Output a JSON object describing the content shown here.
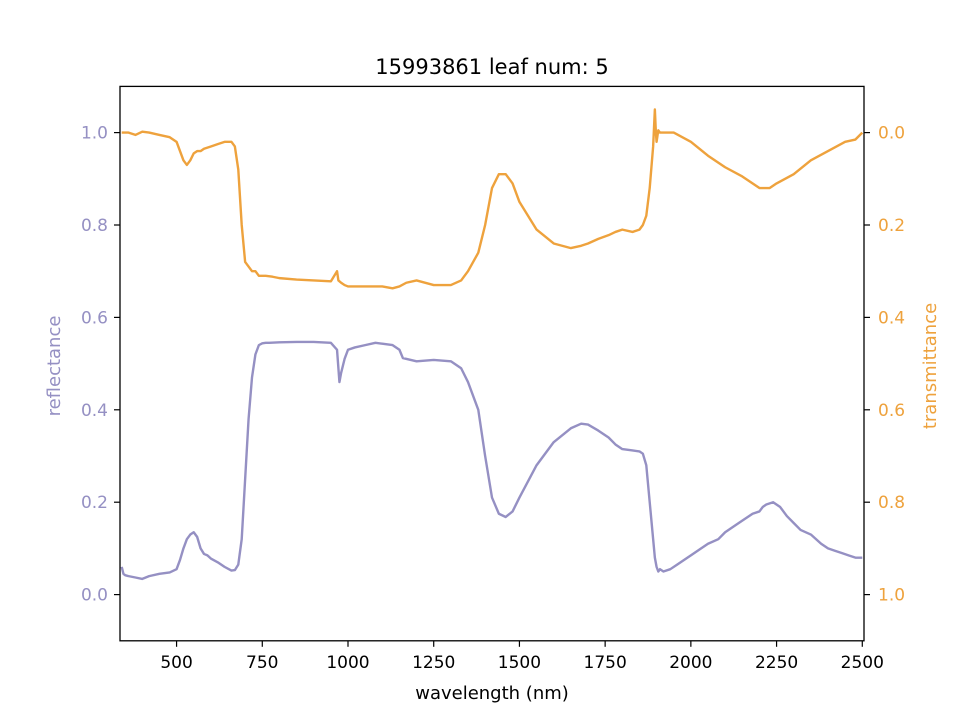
{
  "chart_data": {
    "type": "line",
    "title": "15993861 leaf num: 5",
    "xlabel": "wavelength (nm)",
    "ylabel_left": "reflectance",
    "ylabel_right": "transmittance",
    "xlim": [
      335,
      2505
    ],
    "ylim_left": [
      -0.1,
      1.1
    ],
    "ylim_right": [
      1.1,
      -0.1
    ],
    "right_axis_inverted": true,
    "x_ticks": [
      500,
      750,
      1000,
      1250,
      1500,
      1750,
      2000,
      2250,
      2500
    ],
    "y_ticks_left": [
      0.0,
      0.2,
      0.4,
      0.6,
      0.8,
      1.0
    ],
    "y_ticks_right": [
      0.0,
      0.2,
      0.4,
      0.6,
      0.8,
      1.0
    ],
    "grid": false,
    "colors": {
      "reflectance": "#9590c3",
      "transmittance": "#eea23d",
      "axis": "#000000"
    },
    "series": [
      {
        "name": "reflectance",
        "axis": "left",
        "x": [
          340,
          345,
          350,
          360,
          380,
          400,
          420,
          450,
          480,
          500,
          510,
          520,
          530,
          540,
          550,
          560,
          570,
          580,
          590,
          600,
          620,
          640,
          660,
          670,
          680,
          690,
          700,
          710,
          720,
          730,
          740,
          750,
          760,
          770,
          800,
          850,
          900,
          950,
          968,
          975,
          980,
          990,
          1000,
          1020,
          1050,
          1080,
          1100,
          1130,
          1150,
          1160,
          1200,
          1250,
          1300,
          1330,
          1350,
          1370,
          1380,
          1400,
          1420,
          1440,
          1460,
          1480,
          1500,
          1550,
          1600,
          1650,
          1680,
          1700,
          1730,
          1760,
          1780,
          1800,
          1830,
          1850,
          1860,
          1870,
          1880,
          1890,
          1895,
          1900,
          1905,
          1910,
          1920,
          1940,
          1960,
          1980,
          2000,
          2030,
          2050,
          2080,
          2100,
          2130,
          2150,
          2180,
          2200,
          2210,
          2220,
          2240,
          2260,
          2280,
          2300,
          2320,
          2350,
          2380,
          2400,
          2420,
          2440,
          2460,
          2480,
          2500
        ],
        "y": [
          0.06,
          0.045,
          0.042,
          0.04,
          0.037,
          0.034,
          0.04,
          0.045,
          0.048,
          0.055,
          0.075,
          0.1,
          0.12,
          0.13,
          0.135,
          0.125,
          0.1,
          0.088,
          0.085,
          0.078,
          0.07,
          0.06,
          0.052,
          0.053,
          0.065,
          0.12,
          0.25,
          0.38,
          0.47,
          0.52,
          0.54,
          0.544,
          0.545,
          0.545,
          0.546,
          0.547,
          0.547,
          0.545,
          0.53,
          0.46,
          0.48,
          0.51,
          0.53,
          0.535,
          0.54,
          0.545,
          0.543,
          0.54,
          0.53,
          0.512,
          0.505,
          0.508,
          0.505,
          0.49,
          0.46,
          0.42,
          0.4,
          0.3,
          0.21,
          0.175,
          0.168,
          0.18,
          0.21,
          0.28,
          0.33,
          0.36,
          0.37,
          0.368,
          0.355,
          0.34,
          0.325,
          0.315,
          0.312,
          0.31,
          0.305,
          0.28,
          0.2,
          0.12,
          0.08,
          0.06,
          0.05,
          0.055,
          0.05,
          0.055,
          0.065,
          0.075,
          0.085,
          0.1,
          0.11,
          0.12,
          0.135,
          0.15,
          0.16,
          0.175,
          0.18,
          0.19,
          0.195,
          0.2,
          0.19,
          0.17,
          0.155,
          0.14,
          0.13,
          0.11,
          0.1,
          0.095,
          0.09,
          0.085,
          0.08,
          0.08
        ]
      },
      {
        "name": "transmittance",
        "axis": "right",
        "x": [
          340,
          360,
          380,
          400,
          420,
          450,
          480,
          500,
          510,
          520,
          530,
          540,
          550,
          560,
          570,
          580,
          600,
          620,
          640,
          660,
          670,
          680,
          690,
          700,
          710,
          720,
          730,
          740,
          760,
          780,
          800,
          850,
          900,
          950,
          968,
          972,
          980,
          990,
          1000,
          1050,
          1100,
          1130,
          1150,
          1170,
          1200,
          1250,
          1300,
          1330,
          1350,
          1380,
          1400,
          1420,
          1440,
          1460,
          1480,
          1500,
          1550,
          1600,
          1650,
          1680,
          1700,
          1730,
          1760,
          1780,
          1800,
          1830,
          1850,
          1860,
          1870,
          1880,
          1890,
          1895,
          1898,
          1900,
          1905,
          1910,
          1950,
          2000,
          2050,
          2100,
          2150,
          2200,
          2230,
          2250,
          2300,
          2350,
          2400,
          2450,
          2480,
          2500
        ],
        "y": [
          0.0,
          0.0,
          0.005,
          -0.002,
          0.0,
          0.005,
          0.01,
          0.02,
          0.04,
          0.06,
          0.07,
          0.06,
          0.045,
          0.04,
          0.04,
          0.035,
          0.03,
          0.025,
          0.02,
          0.02,
          0.03,
          0.08,
          0.2,
          0.28,
          0.29,
          0.3,
          0.3,
          0.31,
          0.31,
          0.312,
          0.315,
          0.318,
          0.32,
          0.322,
          0.3,
          0.32,
          0.325,
          0.33,
          0.333,
          0.333,
          0.333,
          0.337,
          0.333,
          0.325,
          0.32,
          0.33,
          0.33,
          0.32,
          0.3,
          0.26,
          0.2,
          0.12,
          0.09,
          0.09,
          0.11,
          0.15,
          0.21,
          0.24,
          0.25,
          0.245,
          0.24,
          0.23,
          0.222,
          0.215,
          0.21,
          0.215,
          0.21,
          0.2,
          0.18,
          0.12,
          0.03,
          -0.05,
          0.0,
          0.02,
          -0.005,
          0.0,
          0.0,
          0.02,
          0.05,
          0.075,
          0.095,
          0.12,
          0.12,
          0.11,
          0.09,
          0.06,
          0.04,
          0.02,
          0.015,
          0.0
        ]
      }
    ]
  }
}
